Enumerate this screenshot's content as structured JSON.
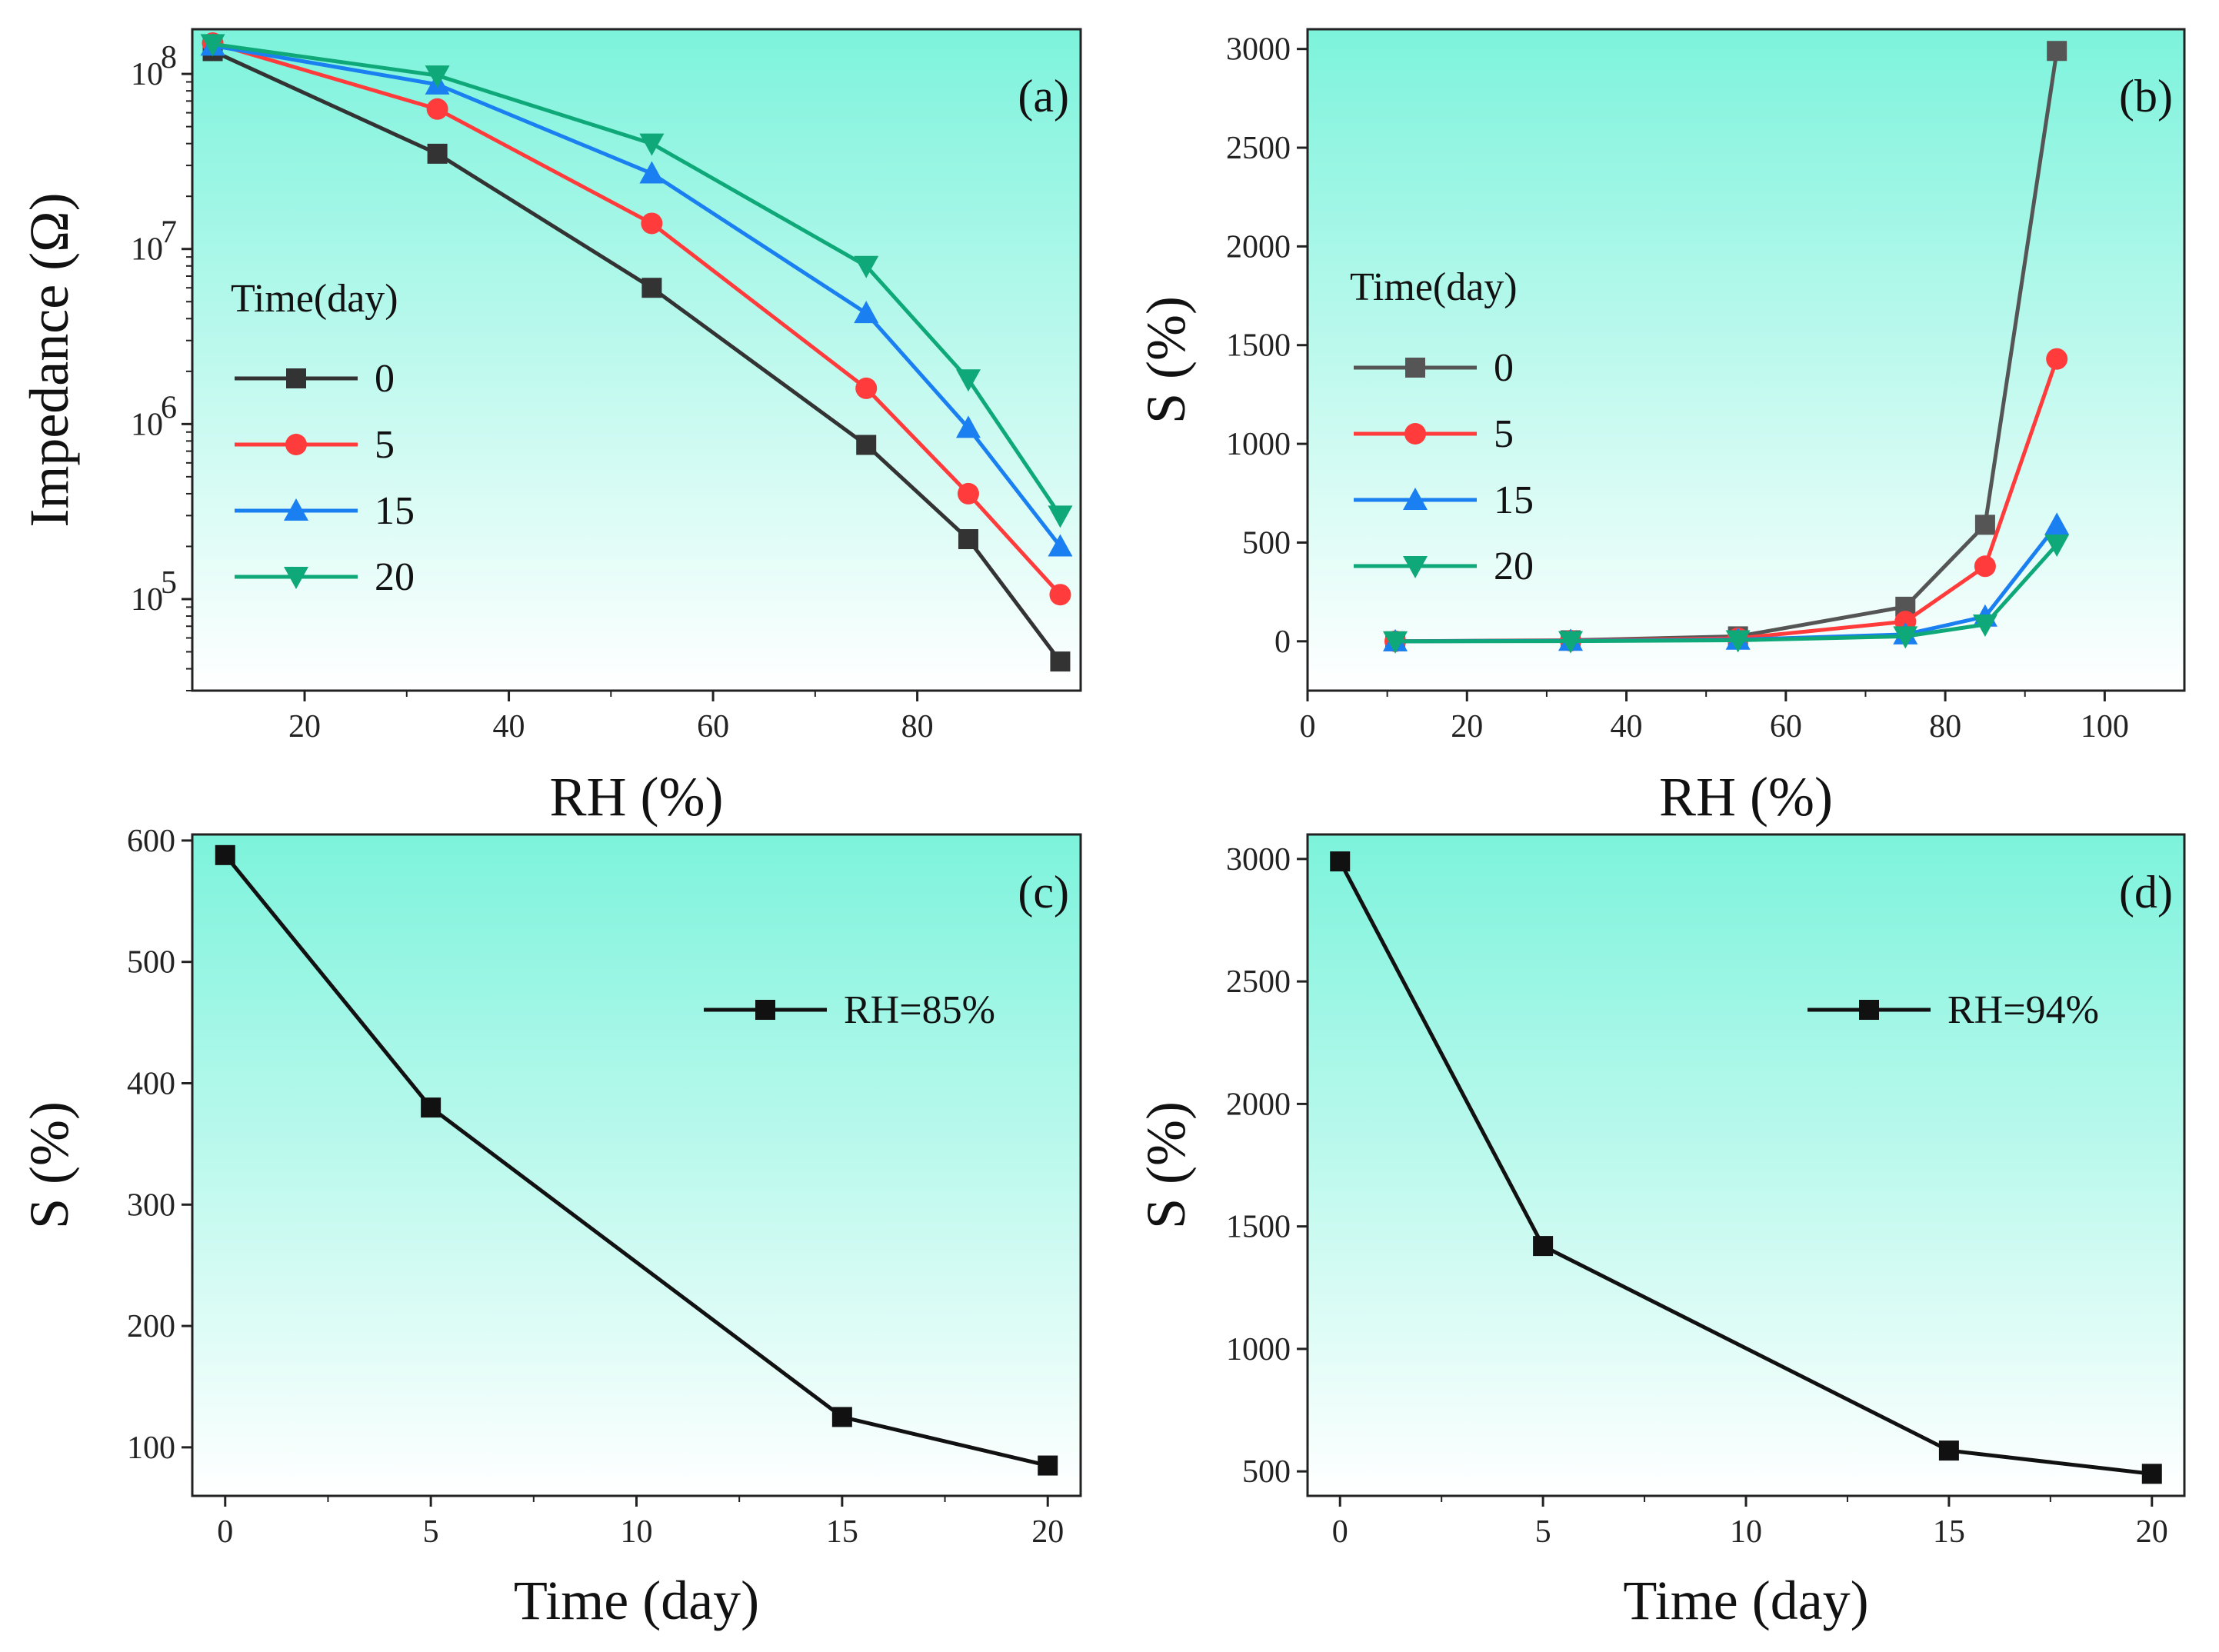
{
  "chart_data": [
    {
      "type": "line",
      "panel_label": "(a)",
      "xlabel": "RH (%)",
      "ylabel": "Impedance (Ω)",
      "yscale": "log",
      "xlim": [
        9,
        96
      ],
      "ylim": [
        30000,
        180000000
      ],
      "xticks": [
        20,
        40,
        60,
        80
      ],
      "yticks": [
        {
          "value": 100000,
          "base": "10",
          "exp": "5"
        },
        {
          "value": 1000000,
          "base": "10",
          "exp": "6"
        },
        {
          "value": 10000000,
          "base": "10",
          "exp": "7"
        },
        {
          "value": 100000000,
          "base": "10",
          "exp": "8"
        }
      ],
      "legend": {
        "title": "Time(day)",
        "position": "left-middle"
      },
      "x": [
        11,
        33,
        54,
        75,
        85,
        94
      ],
      "series": [
        {
          "name": "0",
          "color": "#333333",
          "marker": "square",
          "values": [
            135000000,
            35000000,
            6000000,
            760000,
            220000,
            44000
          ]
        },
        {
          "name": "5",
          "color": "#ff3b3b",
          "marker": "circle",
          "values": [
            150000000,
            63000000,
            14000000,
            1600000,
            400000,
            106000
          ]
        },
        {
          "name": "15",
          "color": "#1a7ff0",
          "marker": "triangle-up",
          "values": [
            145000000,
            87000000,
            27000000,
            4300000,
            950000,
            200000
          ]
        },
        {
          "name": "20",
          "color": "#0fa878",
          "marker": "triangle-down",
          "values": [
            148000000,
            98000000,
            40000000,
            8000000,
            1800000,
            300000
          ]
        }
      ]
    },
    {
      "type": "line",
      "panel_label": "(b)",
      "xlabel": "RH (%)",
      "ylabel": "S (%)",
      "xlim": [
        0,
        110
      ],
      "ylim": [
        -250,
        3100
      ],
      "xticks": [
        0,
        20,
        40,
        60,
        80,
        100
      ],
      "yticks": [
        0,
        500,
        1000,
        1500,
        2000,
        2500,
        3000
      ],
      "legend": {
        "title": "Time(day)",
        "position": "left-middle"
      },
      "x": [
        11,
        33,
        54,
        75,
        85,
        94
      ],
      "series": [
        {
          "name": "0",
          "color": "#555555",
          "marker": "square",
          "values": [
            0,
            5,
            25,
            175,
            590,
            2990
          ]
        },
        {
          "name": "5",
          "color": "#ff3b3b",
          "marker": "circle",
          "values": [
            0,
            3,
            15,
            100,
            380,
            1430
          ]
        },
        {
          "name": "15",
          "color": "#1a7ff0",
          "marker": "triangle-up",
          "values": [
            0,
            2,
            8,
            35,
            125,
            590
          ]
        },
        {
          "name": "20",
          "color": "#0fa878",
          "marker": "triangle-down",
          "values": [
            0,
            1,
            5,
            25,
            85,
            490
          ]
        }
      ]
    },
    {
      "type": "line",
      "panel_label": "(c)",
      "xlabel": "Time (day)",
      "ylabel": "S (%)",
      "xlim": [
        -0.8,
        20.8
      ],
      "ylim": [
        60,
        605
      ],
      "xticks": [
        0,
        5,
        10,
        15,
        20
      ],
      "yticks": [
        100,
        200,
        300,
        400,
        500,
        600
      ],
      "legend": {
        "position": "top-right"
      },
      "x": [
        0,
        5,
        15,
        20
      ],
      "series": [
        {
          "name": "RH=85%",
          "color": "#111111",
          "marker": "square",
          "values": [
            588,
            380,
            125,
            85
          ]
        }
      ]
    },
    {
      "type": "line",
      "panel_label": "(d)",
      "xlabel": "Time (day)",
      "ylabel": "S (%)",
      "xlim": [
        -0.8,
        20.8
      ],
      "ylim": [
        400,
        3100
      ],
      "xticks": [
        0,
        5,
        10,
        15,
        20
      ],
      "yticks": [
        500,
        1000,
        1500,
        2000,
        2500,
        3000
      ],
      "legend": {
        "position": "top-right"
      },
      "x": [
        0,
        5,
        15,
        20
      ],
      "series": [
        {
          "name": "RH=94%",
          "color": "#111111",
          "marker": "square",
          "values": [
            2990,
            1420,
            585,
            490
          ]
        }
      ]
    }
  ],
  "colors": {
    "gradient_top": "#7df3dc",
    "gradient_bottom": "#ffffff"
  }
}
